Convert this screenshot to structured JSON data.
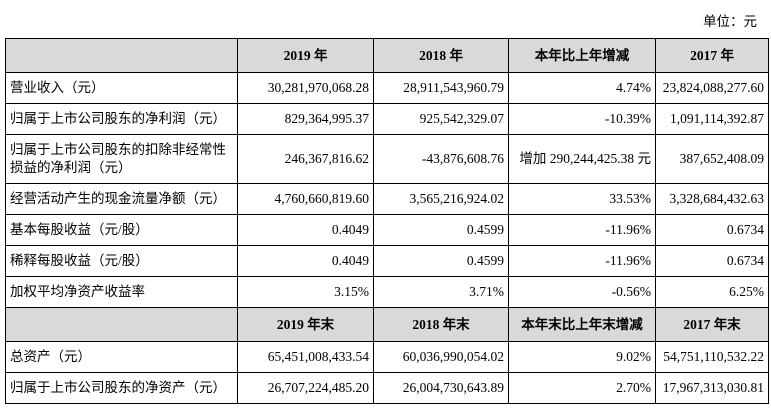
{
  "unit": "单位：元",
  "table": {
    "header": [
      "2019 年",
      "2018 年",
      "本年比上年增减",
      "2017 年"
    ],
    "rows": [
      [
        "营业收入（元）",
        "30,281,970,068.28",
        "28,911,543,960.79",
        "4.74%",
        "23,824,088,277.60"
      ],
      [
        "归属于上市公司股东的净利润（元）",
        "829,364,995.37",
        "925,542,329.07",
        "-10.39%",
        "1,091,114,392.87"
      ],
      [
        "归属于上市公司股东的扣除非经常性损益的净利润（元）",
        "246,367,816.62",
        "-43,876,608.76",
        "增加 290,244,425.38 元",
        "387,652,408.09"
      ],
      [
        "经营活动产生的现金流量净额（元）",
        "4,760,660,819.60",
        "3,565,216,924.02",
        "33.53%",
        "3,328,684,432.63"
      ],
      [
        "基本每股收益（元/股）",
        "0.4049",
        "0.4599",
        "-11.96%",
        "0.6734"
      ],
      [
        "稀释每股收益（元/股）",
        "0.4049",
        "0.4599",
        "-11.96%",
        "0.6734"
      ],
      [
        "加权平均净资产收益率",
        "3.15%",
        "3.71%",
        "-0.56%",
        "6.25%"
      ]
    ],
    "header2": [
      "2019 年末",
      "2018 年末",
      "本年末比上年末增减",
      "2017 年末"
    ],
    "rows2": [
      [
        "总资产（元）",
        "65,451,008,433.54",
        "60,036,990,054.02",
        "9.02%",
        "54,751,110,532.22"
      ],
      [
        "归属于上市公司股东的净资产（元）",
        "26,707,224,485.20",
        "26,004,730,643.89",
        "2.70%",
        "17,967,313,030.81"
      ]
    ]
  }
}
